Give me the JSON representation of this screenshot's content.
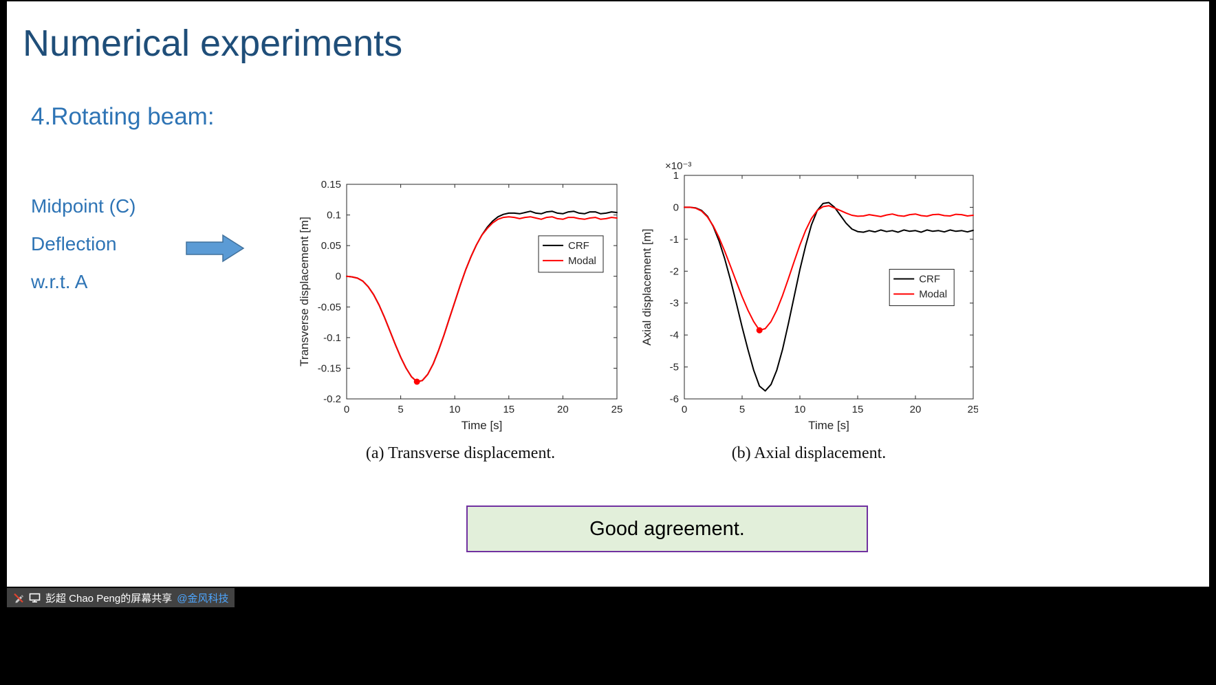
{
  "slide": {
    "title": "Numerical experiments",
    "subtitle": "4.Rotating beam:",
    "side_labels": [
      "Midpoint (C)",
      "Deflection",
      "w.r.t. A"
    ],
    "conclusion": "Good agreement."
  },
  "colors": {
    "title_blue": "#1F4E79",
    "text_blue": "#2E74B5",
    "arrow_fill": "#5B9BD5",
    "arrow_stroke": "#41719C",
    "box_fill": "#E2EFDA",
    "box_border": "#7030A0",
    "crf_line": "#000000",
    "modal_line": "#FF0000"
  },
  "icons": {
    "annotation_disabled": "pencil-with-red-slash",
    "screen_share": "monitor"
  },
  "statusbar": {
    "share_text": "彭超 Chao Peng的屏幕共享",
    "share_link": "@金风科技"
  },
  "chart_data": [
    {
      "type": "line",
      "caption": "(a) Transverse displacement.",
      "xlabel": "Time [s]",
      "ylabel": "Transverse displacement [m]",
      "xlim": [
        0,
        25
      ],
      "ylim": [
        -0.2,
        0.15
      ],
      "xticks": [
        0,
        5,
        10,
        15,
        20,
        25
      ],
      "yticks": [
        -0.2,
        -0.15,
        -0.1,
        -0.05,
        0,
        0.05,
        0.1,
        0.15
      ],
      "grid": false,
      "legend_position": "upper-right",
      "legend_frac": [
        0.71,
        0.24
      ],
      "x": [
        0,
        0.5,
        1,
        1.5,
        2,
        2.5,
        3,
        3.5,
        4,
        4.5,
        5,
        5.5,
        6,
        6.5,
        7,
        7.5,
        8,
        8.5,
        9,
        9.5,
        10,
        10.5,
        11,
        11.5,
        12,
        12.5,
        13,
        13.5,
        14,
        14.5,
        15,
        15.5,
        16,
        16.5,
        17,
        17.5,
        18,
        18.5,
        19,
        19.5,
        20,
        20.5,
        21,
        21.5,
        22,
        22.5,
        23,
        23.5,
        24,
        24.5,
        25
      ],
      "series": [
        {
          "name": "CRF",
          "color": "#000000",
          "y": [
            0,
            -0.001,
            -0.003,
            -0.008,
            -0.017,
            -0.03,
            -0.047,
            -0.067,
            -0.089,
            -0.111,
            -0.132,
            -0.15,
            -0.164,
            -0.172,
            -0.17,
            -0.16,
            -0.143,
            -0.121,
            -0.096,
            -0.069,
            -0.042,
            -0.015,
            0.01,
            0.032,
            0.051,
            0.067,
            0.08,
            0.09,
            0.097,
            0.101,
            0.103,
            0.103,
            0.102,
            0.104,
            0.106,
            0.103,
            0.102,
            0.105,
            0.106,
            0.103,
            0.102,
            0.105,
            0.106,
            0.103,
            0.102,
            0.105,
            0.105,
            0.102,
            0.103,
            0.105,
            0.104
          ]
        },
        {
          "name": "Modal",
          "color": "#FF0000",
          "y": [
            0,
            -0.001,
            -0.003,
            -0.008,
            -0.017,
            -0.03,
            -0.047,
            -0.067,
            -0.089,
            -0.111,
            -0.132,
            -0.15,
            -0.164,
            -0.172,
            -0.17,
            -0.16,
            -0.143,
            -0.121,
            -0.096,
            -0.069,
            -0.042,
            -0.015,
            0.01,
            0.032,
            0.051,
            0.067,
            0.078,
            0.087,
            0.093,
            0.096,
            0.097,
            0.096,
            0.094,
            0.096,
            0.097,
            0.095,
            0.093,
            0.096,
            0.097,
            0.094,
            0.093,
            0.096,
            0.096,
            0.094,
            0.093,
            0.095,
            0.096,
            0.093,
            0.094,
            0.096,
            0.095
          ]
        }
      ],
      "marker": {
        "x": 6.5,
        "y": -0.172,
        "color": "#FF0000"
      }
    },
    {
      "type": "line",
      "caption": "(b) Axial displacement.",
      "xlabel": "Time [s]",
      "ylabel": "Axial displacement [m]",
      "y_exp_label": "×10⁻³",
      "xlim": [
        0,
        25
      ],
      "ylim": [
        -6,
        1
      ],
      "xticks": [
        0,
        5,
        10,
        15,
        20,
        25
      ],
      "yticks": [
        -6,
        -5,
        -4,
        -3,
        -2,
        -1,
        0,
        1
      ],
      "grid": false,
      "legend_position": "middle-right",
      "legend_frac": [
        0.71,
        0.42
      ],
      "x": [
        0,
        0.5,
        1,
        1.5,
        2,
        2.5,
        3,
        3.5,
        4,
        4.5,
        5,
        5.5,
        6,
        6.5,
        7,
        7.5,
        8,
        8.5,
        9,
        9.5,
        10,
        10.5,
        11,
        11.5,
        12,
        12.5,
        13,
        13.5,
        14,
        14.5,
        15,
        15.5,
        16,
        16.5,
        17,
        17.5,
        18,
        18.5,
        19,
        19.5,
        20,
        20.5,
        21,
        21.5,
        22,
        22.5,
        23,
        23.5,
        24,
        24.5,
        25
      ],
      "series": [
        {
          "name": "CRF",
          "color": "#000000",
          "y": [
            0,
            0,
            -0.02,
            -0.1,
            -0.28,
            -0.6,
            -1.05,
            -1.62,
            -2.28,
            -3,
            -3.75,
            -4.45,
            -5.1,
            -5.6,
            -5.75,
            -5.55,
            -5.1,
            -4.45,
            -3.65,
            -2.8,
            -1.95,
            -1.2,
            -0.55,
            -0.1,
            0.12,
            0.15,
            0,
            -0.25,
            -0.5,
            -0.68,
            -0.76,
            -0.78,
            -0.73,
            -0.77,
            -0.71,
            -0.76,
            -0.73,
            -0.78,
            -0.71,
            -0.75,
            -0.73,
            -0.78,
            -0.71,
            -0.75,
            -0.73,
            -0.77,
            -0.71,
            -0.75,
            -0.73,
            -0.77,
            -0.72
          ]
        },
        {
          "name": "Modal",
          "color": "#FF0000",
          "y": [
            0,
            0,
            -0.03,
            -0.12,
            -0.3,
            -0.58,
            -0.95,
            -1.38,
            -1.85,
            -2.33,
            -2.8,
            -3.22,
            -3.58,
            -3.85,
            -3.8,
            -3.58,
            -3.22,
            -2.76,
            -2.24,
            -1.7,
            -1.18,
            -0.72,
            -0.35,
            -0.1,
            0.02,
            0.05,
            -0.02,
            -0.1,
            -0.18,
            -0.25,
            -0.28,
            -0.27,
            -0.23,
            -0.26,
            -0.29,
            -0.24,
            -0.21,
            -0.26,
            -0.28,
            -0.23,
            -0.21,
            -0.26,
            -0.28,
            -0.23,
            -0.22,
            -0.26,
            -0.27,
            -0.22,
            -0.23,
            -0.27,
            -0.25
          ]
        }
      ],
      "marker": {
        "x": 6.5,
        "y": -3.85,
        "color": "#FF0000"
      }
    }
  ]
}
